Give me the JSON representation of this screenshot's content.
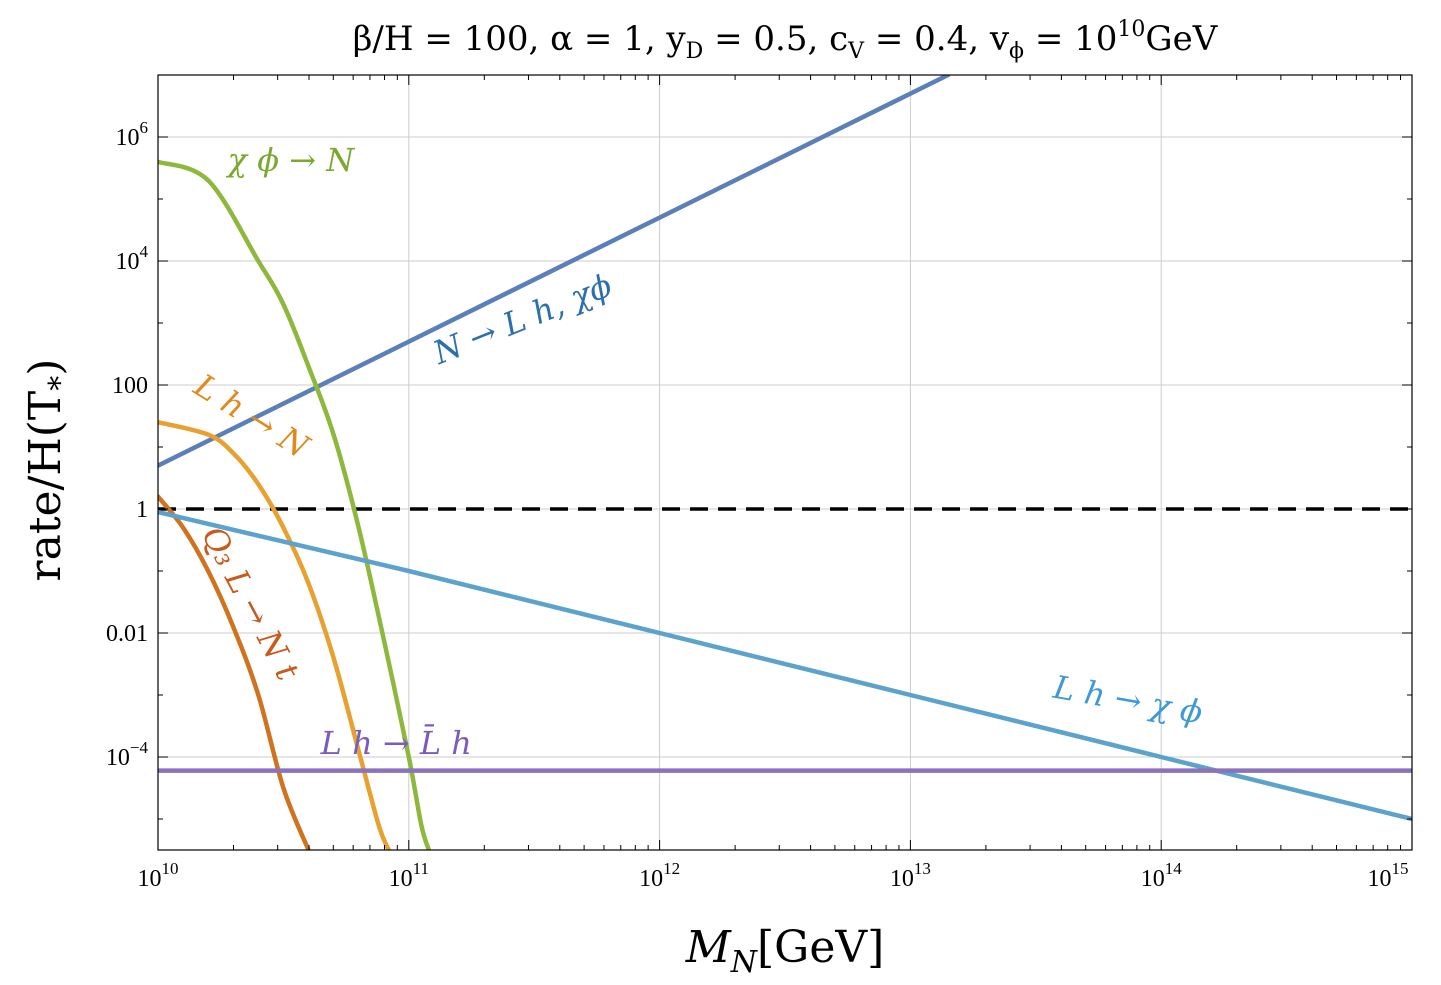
{
  "chart_data": {
    "type": "line",
    "title": "β/H = 100, α = 1, y_D = 0.5, c_V = 0.4, v_ϕ = 10^10 GeV",
    "title_parts": {
      "main": "β/H = 100, α = 1, y",
      "yD_sub": "D",
      "mid1": " = 0.5, c",
      "cV_sub": "V",
      "mid2": " = 0.4, v",
      "vphi_sub": "ϕ",
      "mid3": " = 10",
      "exp": "10",
      "unit": "GeV"
    },
    "xlabel": "M_N[GeV]",
    "xlabel_parts": {
      "main": "M",
      "sub": "N",
      "unit": "[GeV]"
    },
    "ylabel": "rate/H(T_*)",
    "ylabel_parts": {
      "main": "rate/H(T",
      "sub": "*",
      "close": ")"
    },
    "x_scale": "log",
    "y_scale": "log",
    "xlim_log10": [
      10,
      15
    ],
    "ylim_log10": [
      -5.5,
      7.0
    ],
    "grid": true,
    "x_ticks": [
      {
        "log10": 10,
        "base": "10",
        "exp": "10"
      },
      {
        "log10": 11,
        "base": "10",
        "exp": "11"
      },
      {
        "log10": 12,
        "base": "10",
        "exp": "12"
      },
      {
        "log10": 13,
        "base": "10",
        "exp": "13"
      },
      {
        "log10": 14,
        "base": "10",
        "exp": "14"
      },
      {
        "log10": 15,
        "base": "10",
        "exp": "15"
      }
    ],
    "y_ticks": [
      {
        "log10": 6,
        "base": "10",
        "exp": "6"
      },
      {
        "log10": 4,
        "base": "10",
        "exp": "4"
      },
      {
        "log10": 2,
        "base": "100",
        "exp": ""
      },
      {
        "log10": 0,
        "base": "1",
        "exp": ""
      },
      {
        "log10": -2,
        "base": "0.01",
        "exp": ""
      },
      {
        "log10": -4,
        "base": "10",
        "exp": "−4"
      }
    ],
    "reference_line": {
      "name": "rate = H",
      "y_log10": 0,
      "style": "dashed",
      "color": "#000000"
    },
    "series": [
      {
        "name": "N → L h, χϕ",
        "label": "N → L h, χϕ",
        "color": "#5b7fb8",
        "label_color": "#2c6fb0",
        "points": [
          [
            10,
            0.7
          ],
          [
            11,
            2.7
          ],
          [
            12,
            4.7
          ],
          [
            13,
            6.7
          ],
          [
            13.15,
            7.0
          ]
        ]
      },
      {
        "name": "χϕ → N",
        "label": "χ ϕ → N",
        "color": "#8db83b",
        "label_color": "#7ba82e",
        "points": [
          [
            10,
            5.6
          ],
          [
            10.2,
            5.3
          ],
          [
            10.4,
            4.0
          ],
          [
            10.5,
            3.3
          ],
          [
            10.6,
            2.3
          ],
          [
            10.7,
            1.2
          ],
          [
            10.8,
            -0.3
          ],
          [
            10.9,
            -2.1
          ],
          [
            11.0,
            -4.0
          ],
          [
            11.05,
            -5.1
          ],
          [
            11.08,
            -5.5
          ]
        ]
      },
      {
        "name": "L h → N",
        "label": "L h → N",
        "color": "#e8a030",
        "label_color": "#e08a1e",
        "points": [
          [
            10,
            1.4
          ],
          [
            10.2,
            1.2
          ],
          [
            10.3,
            0.9
          ],
          [
            10.4,
            0.4
          ],
          [
            10.5,
            -0.3
          ],
          [
            10.6,
            -1.2
          ],
          [
            10.7,
            -2.4
          ],
          [
            10.8,
            -3.9
          ],
          [
            10.88,
            -5.1
          ],
          [
            10.92,
            -5.5
          ]
        ]
      },
      {
        "name": "Q3 L → N t",
        "label": "Q₃ L → N t",
        "color": "#d0731f",
        "label_color": "#c85a1a",
        "points": [
          [
            10,
            0.2
          ],
          [
            10.1,
            -0.3
          ],
          [
            10.2,
            -1.0
          ],
          [
            10.3,
            -1.9
          ],
          [
            10.4,
            -3.0
          ],
          [
            10.5,
            -4.5
          ],
          [
            10.6,
            -5.5
          ]
        ]
      },
      {
        "name": "L h → χϕ",
        "label": "L h → χ ϕ",
        "color": "#5ba2cc",
        "label_color": "#3d9ad6",
        "points": [
          [
            10,
            -0.05
          ],
          [
            11,
            -1.0
          ],
          [
            12,
            -2.0
          ],
          [
            13,
            -3.0
          ],
          [
            14,
            -4.0
          ],
          [
            15,
            -5.0
          ]
        ]
      },
      {
        "name": "L h → L̄ h",
        "label": "L h → L̄ h",
        "color": "#8a72bd",
        "label_color": "#7a5cc0",
        "points": [
          [
            10,
            -4.22
          ],
          [
            15,
            -4.22
          ]
        ]
      }
    ]
  }
}
